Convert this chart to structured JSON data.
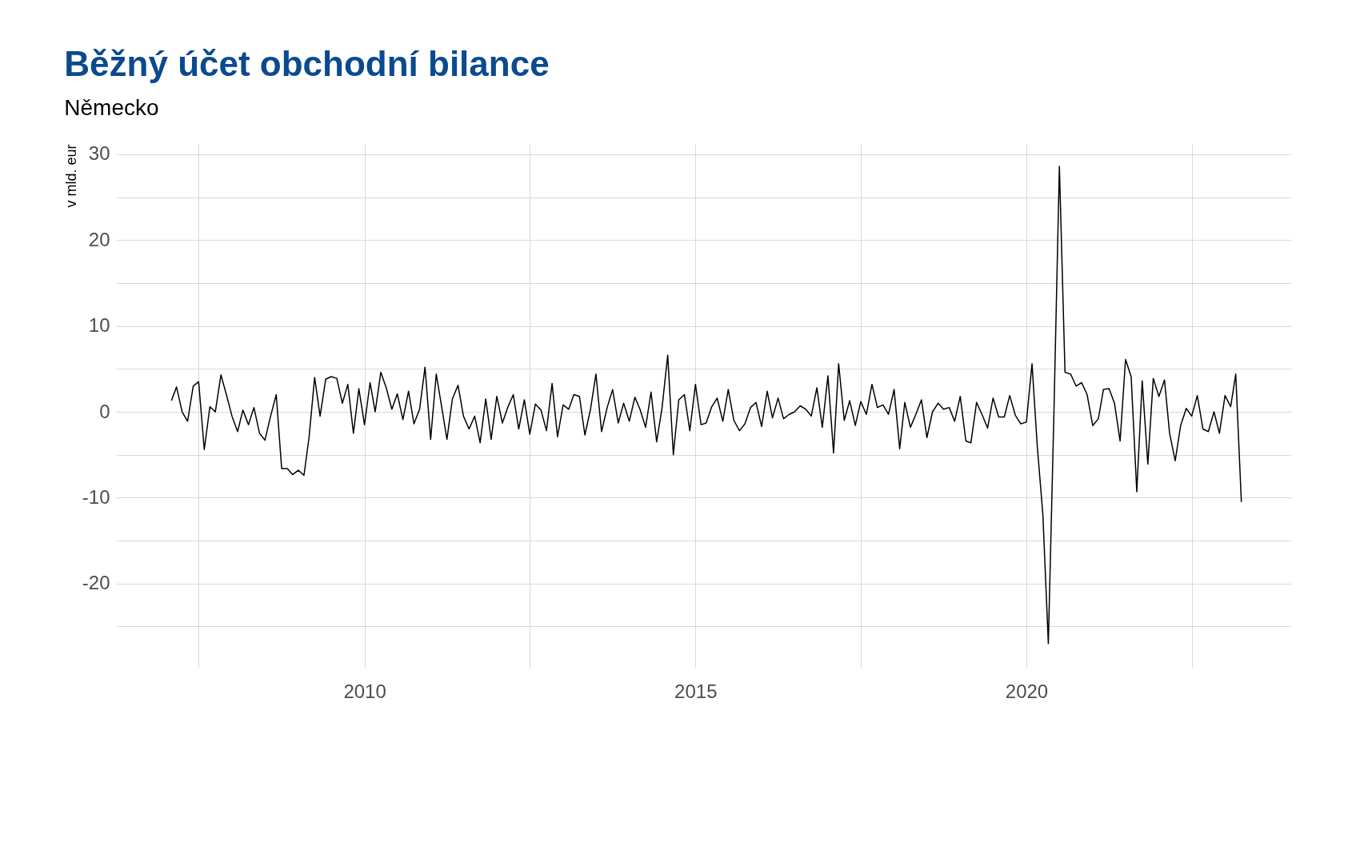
{
  "chart_data": {
    "type": "line",
    "title": "Běžný účet obchodní bilance",
    "subtitle": "Německo",
    "ylabel": "v mld. eur",
    "grid": true,
    "x": [
      "2007-02",
      "2007-03",
      "2007-04",
      "2007-05",
      "2007-06",
      "2007-07",
      "2007-08",
      "2007-09",
      "2007-10",
      "2007-11",
      "2007-12",
      "2008-01",
      "2008-02",
      "2008-03",
      "2008-04",
      "2008-05",
      "2008-06",
      "2008-07",
      "2008-08",
      "2008-09",
      "2008-10",
      "2008-11",
      "2008-12",
      "2009-01",
      "2009-02",
      "2009-03",
      "2009-04",
      "2009-05",
      "2009-06",
      "2009-07",
      "2009-08",
      "2009-09",
      "2009-10",
      "2009-11",
      "2009-12",
      "2010-01",
      "2010-02",
      "2010-03",
      "2010-04",
      "2010-05",
      "2010-06",
      "2010-07",
      "2010-08",
      "2010-09",
      "2010-10",
      "2010-11",
      "2010-12",
      "2011-01",
      "2011-02",
      "2011-03",
      "2011-04",
      "2011-05",
      "2011-06",
      "2011-07",
      "2011-08",
      "2011-09",
      "2011-10",
      "2011-11",
      "2011-12",
      "2012-01",
      "2012-02",
      "2012-03",
      "2012-04",
      "2012-05",
      "2012-06",
      "2012-07",
      "2012-08",
      "2012-09",
      "2012-10",
      "2012-11",
      "2012-12",
      "2013-01",
      "2013-02",
      "2013-03",
      "2013-04",
      "2013-05",
      "2013-06",
      "2013-07",
      "2013-08",
      "2013-09",
      "2013-10",
      "2013-11",
      "2013-12",
      "2014-01",
      "2014-02",
      "2014-03",
      "2014-04",
      "2014-05",
      "2014-06",
      "2014-07",
      "2014-08",
      "2014-09",
      "2014-10",
      "2014-11",
      "2014-12",
      "2015-01",
      "2015-02",
      "2015-03",
      "2015-04",
      "2015-05",
      "2015-06",
      "2015-07",
      "2015-08",
      "2015-09",
      "2015-10",
      "2015-11",
      "2015-12",
      "2016-01",
      "2016-02",
      "2016-03",
      "2016-04",
      "2016-05",
      "2016-06",
      "2016-07",
      "2016-08",
      "2016-09",
      "2016-10",
      "2016-11",
      "2016-12",
      "2017-01",
      "2017-02",
      "2017-03",
      "2017-04",
      "2017-05",
      "2017-06",
      "2017-07",
      "2017-08",
      "2017-09",
      "2017-10",
      "2017-11",
      "2017-12",
      "2018-01",
      "2018-02",
      "2018-03",
      "2018-04",
      "2018-05",
      "2018-06",
      "2018-07",
      "2018-08",
      "2018-09",
      "2018-10",
      "2018-11",
      "2018-12",
      "2019-01",
      "2019-02",
      "2019-03",
      "2019-04",
      "2019-05",
      "2019-06",
      "2019-07",
      "2019-08",
      "2019-09",
      "2019-10",
      "2019-11",
      "2019-12",
      "2020-01",
      "2020-02",
      "2020-03",
      "2020-04",
      "2020-05",
      "2020-06",
      "2020-07",
      "2020-08",
      "2020-09",
      "2020-10",
      "2020-11",
      "2020-12",
      "2021-01",
      "2021-02",
      "2021-03",
      "2021-04",
      "2021-05",
      "2021-06",
      "2021-07",
      "2021-08",
      "2021-09",
      "2021-10",
      "2021-11",
      "2021-12",
      "2022-01",
      "2022-02",
      "2022-03",
      "2022-04",
      "2022-05",
      "2022-06",
      "2022-07",
      "2022-08",
      "2022-09",
      "2022-10",
      "2022-11",
      "2022-12",
      "2023-01",
      "2023-02",
      "2023-03",
      "2023-04"
    ],
    "series": [
      {
        "color": "#000000",
        "values": [
          1.3,
          2.9,
          0.0,
          -1.1,
          3.0,
          3.5,
          -4.4,
          0.6,
          0.0,
          4.3,
          2.0,
          -0.5,
          -2.3,
          0.2,
          -1.5,
          0.5,
          -2.5,
          -3.3,
          -0.5,
          2.0,
          -6.6,
          -6.6,
          -7.3,
          -6.8,
          -7.4,
          -3.0,
          4.0,
          -0.5,
          3.8,
          4.1,
          3.9,
          1.0,
          3.2,
          -2.5,
          2.7,
          -1.5,
          3.4,
          0.0,
          4.6,
          2.8,
          0.3,
          2.1,
          -0.9,
          2.4,
          -1.4,
          0.3,
          5.2,
          -3.2,
          4.4,
          0.8,
          -3.2,
          1.5,
          3.1,
          -0.5,
          -2.0,
          -0.5,
          -3.6,
          1.5,
          -3.2,
          1.8,
          -1.3,
          0.5,
          2.0,
          -2.0,
          1.4,
          -2.6,
          0.9,
          0.2,
          -2.2,
          3.3,
          -2.9,
          0.8,
          0.3,
          2.0,
          1.8,
          -2.7,
          0.3,
          4.4,
          -2.3,
          0.5,
          2.6,
          -1.3,
          1.0,
          -1.1,
          1.7,
          0.3,
          -1.8,
          2.3,
          -3.5,
          0.5,
          6.6,
          -5.0,
          1.4,
          2.0,
          -2.2,
          3.2,
          -1.5,
          -1.3,
          0.6,
          1.6,
          -1.1,
          2.6,
          -1.0,
          -2.2,
          -1.4,
          0.5,
          1.1,
          -1.7,
          2.4,
          -0.7,
          1.6,
          -0.8,
          -0.3,
          0.0,
          0.7,
          0.3,
          -0.5,
          2.8,
          -1.8,
          4.2,
          -4.8,
          5.6,
          -1.0,
          1.3,
          -1.6,
          1.2,
          -0.3,
          3.2,
          0.5,
          0.8,
          -0.3,
          2.6,
          -4.3,
          1.1,
          -1.8,
          -0.3,
          1.4,
          -3.0,
          0.0,
          1.0,
          0.3,
          0.5,
          -1.1,
          1.8,
          -3.4,
          -3.6,
          1.1,
          -0.3,
          -1.9,
          1.6,
          -0.6,
          -0.6,
          1.9,
          -0.4,
          -1.4,
          -1.2,
          5.6,
          -4.0,
          -12.0,
          -27.0,
          0.0,
          28.6,
          4.6,
          4.4,
          3.0,
          3.4,
          2.0,
          -1.6,
          -0.8,
          2.6,
          2.7,
          1.0,
          -3.4,
          6.1,
          4.1,
          -9.3,
          3.6,
          -6.1,
          3.9,
          1.8,
          3.7,
          -2.5,
          -5.7,
          -1.6,
          0.4,
          -0.5,
          1.9,
          -2.0,
          -2.3,
          0.0,
          -2.5,
          1.9,
          0.6,
          4.4,
          -10.5
        ]
      }
    ],
    "xlim": [
      "2006-04",
      "2024-01"
    ],
    "xticks": [
      {
        "value": "2007-07",
        "label": null
      },
      "2010",
      {
        "value": "2012-07",
        "label": null
      },
      "2015",
      {
        "value": "2017-07",
        "label": null
      },
      "2020",
      {
        "value": "2022-07",
        "label": null
      }
    ],
    "ylim": [
      -29.8,
      31.2
    ],
    "yticks": [
      {
        "value": -25,
        "label": null
      },
      -20,
      {
        "value": -15,
        "label": null
      },
      -10,
      {
        "value": -5,
        "label": null
      },
      0,
      {
        "value": 5,
        "label": null
      },
      10,
      {
        "value": 15,
        "label": null
      },
      20,
      {
        "value": 25,
        "label": null
      },
      30
    ]
  }
}
